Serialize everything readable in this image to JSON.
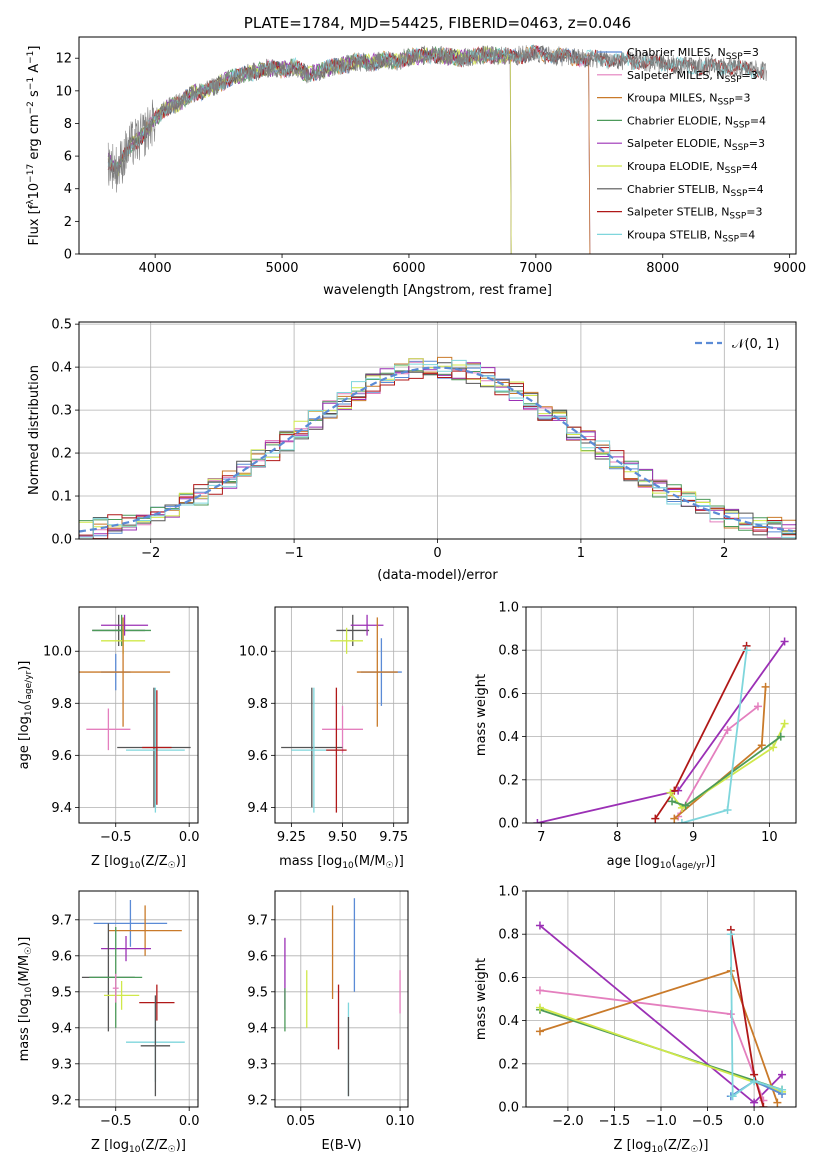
{
  "chart_data": [
    {
      "id": "spectrum",
      "type": "line",
      "title": "PLATE=1784, MJD=54425, FIBERID=0463, z=0.046",
      "xlabel": "wavelength [Angstrom, rest frame]",
      "ylabel": "Flux [f$_\\lambda$10$^{-17}$ erg cm$^{-2}$ s$^{-1}$ A$^{-1}$]",
      "ylabel_parts": [
        "Flux [f",
        "λ",
        "10",
        "−17",
        " erg cm",
        "−2",
        " s",
        "−1",
        " A",
        "−1",
        "]"
      ],
      "xlim": [
        3400,
        9050
      ],
      "ylim": [
        0,
        13.3
      ],
      "xticks": [
        4000,
        5000,
        6000,
        7000,
        8000,
        9000
      ],
      "yticks": [
        0,
        2,
        4,
        6,
        8,
        10,
        12
      ],
      "continuum": {
        "x": [
          3630,
          3700,
          3800,
          3900,
          4000,
          4100,
          4200,
          4300,
          4400,
          4500,
          4600,
          4700,
          4800,
          4900,
          5000,
          5100,
          5200,
          5300,
          5400,
          5500,
          5600,
          5700,
          5800,
          5900,
          6000,
          6200,
          6400,
          6600,
          6800,
          7000,
          7200,
          7400,
          7600,
          7800,
          8000,
          8200,
          8400,
          8600,
          8800
        ],
        "y": [
          5.7,
          5.2,
          6.6,
          7.2,
          8.3,
          9.0,
          9.3,
          9.9,
          10.0,
          10.4,
          10.8,
          11.0,
          11.2,
          11.4,
          11.3,
          11.5,
          11.0,
          11.2,
          11.5,
          11.6,
          11.8,
          11.7,
          11.9,
          11.8,
          12.1,
          12.2,
          12.0,
          12.2,
          12.1,
          12.3,
          12.1,
          12.0,
          11.9,
          11.8,
          11.7,
          11.5,
          11.5,
          11.4,
          11.2
        ]
      },
      "series": [
        {
          "name": "Chabrier MILES, N$_{SSP}$=3",
          "label": "Chabrier MILES, N",
          "sub": "SSP",
          "suffix": "=3",
          "color": "#5b8bd6",
          "xmax": 7420
        },
        {
          "name": "Salpeter MILES, N$_{SSP}$=3",
          "label": "Salpeter MILES, N",
          "sub": "SSP",
          "suffix": "=3",
          "color": "#e47fbe",
          "xmax": 7420
        },
        {
          "name": "Kroupa MILES, N$_{SSP}$=3",
          "label": "Kroupa MILES, N",
          "sub": "SSP",
          "suffix": "=3",
          "color": "#c97a2a",
          "xmax": 7420
        },
        {
          "name": "Chabrier ELODIE, N$_{SSP}$=4",
          "label": "Chabrier ELODIE, N",
          "sub": "SSP",
          "suffix": "=4",
          "color": "#4c9a5a",
          "xmax": 6800
        },
        {
          "name": "Salpeter ELODIE, N$_{SSP}$=3",
          "label": "Salpeter ELODIE, N",
          "sub": "SSP",
          "suffix": "=3",
          "color": "#9b30b5",
          "xmax": 6800
        },
        {
          "name": "Kroupa ELODIE, N$_{SSP}$=4",
          "label": "Kroupa ELODIE, N",
          "sub": "SSP",
          "suffix": "=4",
          "color": "#d0e84a",
          "xmax": 6800
        },
        {
          "name": "Chabrier STELIB, N$_{SSP}$=4",
          "label": "Chabrier STELIB, N",
          "sub": "SSP",
          "suffix": "=4",
          "color": "#555555",
          "xmax": 8800
        },
        {
          "name": "Salpeter STELIB, N$_{SSP}$=3",
          "label": "Salpeter STELIB, N",
          "sub": "SSP",
          "suffix": "=3",
          "color": "#b01818",
          "xmax": 8800
        },
        {
          "name": "Kroupa STELIB, N$_{SSP}$=4",
          "label": "Kroupa STELIB, N",
          "sub": "SSP",
          "suffix": "=4",
          "color": "#7fd6dc",
          "xmax": 8800
        }
      ],
      "data_color": "#808080",
      "legend": "right"
    },
    {
      "id": "residuals",
      "type": "histogram",
      "xlabel": "(data-model)/error",
      "ylabel": "Normed distribution",
      "xlim": [
        -2.5,
        2.5
      ],
      "ylim": [
        0,
        0.505
      ],
      "xticks": [
        -2,
        -1,
        0,
        1,
        2
      ],
      "yticks": [
        0.0,
        0.1,
        0.2,
        0.3,
        0.4,
        0.5
      ],
      "bin_width": 0.1,
      "reference": {
        "name": "N(0,1)",
        "label": "𝒩(0, 1)",
        "color": "#5b8bd6",
        "style": "dashed"
      },
      "grid": true,
      "legend": "top-right"
    },
    {
      "id": "age_vs_Z",
      "type": "errorbar",
      "xlabel": "Z [log10(Z/Z☉)]",
      "xlabel_parts": [
        "Z [log",
        "10",
        "(Z/Z",
        "☉",
        ")]"
      ],
      "ylabel": "age [log10(age/yr)]",
      "ylabel_parts": [
        "age  [log",
        "10",
        "(",
        "age/yr",
        ")]"
      ],
      "xlim": [
        -0.75,
        0.06
      ],
      "ylim": [
        9.34,
        10.17
      ],
      "xticks": [
        -0.5,
        0.0
      ],
      "xticklabels": [
        "−0.5",
        "0.0"
      ],
      "yticks": [
        9.4,
        9.6,
        9.8,
        10.0
      ],
      "yticklabels": [
        "9.4",
        "9.6",
        "9.8",
        "10.0"
      ],
      "points": [
        {
          "color": "#555555",
          "x": -0.48,
          "y": 10.08,
          "xerr": 0.18,
          "yerr": 0.06
        },
        {
          "color": "#4c9a5a",
          "x": -0.46,
          "y": 10.08,
          "xerr": 0.2,
          "yerr": 0.06
        },
        {
          "color": "#9b30b5",
          "x": -0.44,
          "y": 10.1,
          "xerr": 0.16,
          "yerr": 0.04
        },
        {
          "color": "#d0e84a",
          "x": -0.45,
          "y": 10.04,
          "xerr": 0.15,
          "yerr": 0.05
        },
        {
          "color": "#5b8bd6",
          "x": -0.5,
          "y": 9.92,
          "xerr": 0.1,
          "yerr": 0.07
        },
        {
          "color": "#c97a2a",
          "x": -0.45,
          "y": 9.92,
          "xerr": 0.32,
          "yerr": 0.21
        },
        {
          "color": "#e47fbe",
          "x": -0.55,
          "y": 9.7,
          "xerr": 0.15,
          "yerr": 0.08
        },
        {
          "color": "#555555",
          "x": -0.24,
          "y": 9.63,
          "xerr": 0.25,
          "yerr": 0.23
        },
        {
          "color": "#7fd6dc",
          "x": -0.23,
          "y": 9.62,
          "xerr": 0.2,
          "yerr": 0.24
        },
        {
          "color": "#b01818",
          "x": -0.22,
          "y": 9.63,
          "xerr": 0.1,
          "yerr": 0.22
        }
      ]
    },
    {
      "id": "age_vs_mass",
      "type": "errorbar",
      "xlabel": "mass [log10(M/M☉)]",
      "xlabel_parts": [
        "mass [log",
        "10",
        "(M/M",
        "☉",
        ")]"
      ],
      "xlim": [
        9.17,
        9.82
      ],
      "ylim": [
        9.34,
        10.17
      ],
      "xticks": [
        9.25,
        9.5,
        9.75
      ],
      "xticklabels": [
        "9.25",
        "9.50",
        "9.75"
      ],
      "yticks": [
        9.4,
        9.6,
        9.8,
        10.0
      ],
      "yticklabels": [
        "9.4",
        "9.6",
        "9.8",
        "10.0"
      ],
      "points": [
        {
          "color": "#555555",
          "x": 9.55,
          "y": 10.08,
          "xerr": 0.08,
          "yerr": 0.06
        },
        {
          "color": "#9b30b5",
          "x": 9.62,
          "y": 10.1,
          "xerr": 0.08,
          "yerr": 0.04
        },
        {
          "color": "#d0e84a",
          "x": 9.52,
          "y": 10.04,
          "xerr": 0.08,
          "yerr": 0.05
        },
        {
          "color": "#5b8bd6",
          "x": 9.69,
          "y": 9.92,
          "xerr": 0.1,
          "yerr": 0.13
        },
        {
          "color": "#c97a2a",
          "x": 9.67,
          "y": 9.92,
          "xerr": 0.1,
          "yerr": 0.21
        },
        {
          "color": "#e47fbe",
          "x": 9.5,
          "y": 9.7,
          "xerr": 0.1,
          "yerr": 0.09
        },
        {
          "color": "#555555",
          "x": 9.35,
          "y": 9.63,
          "xerr": 0.15,
          "yerr": 0.23
        },
        {
          "color": "#7fd6dc",
          "x": 9.36,
          "y": 9.62,
          "xerr": 0.11,
          "yerr": 0.24
        },
        {
          "color": "#b01818",
          "x": 9.47,
          "y": 9.62,
          "xerr": 0.05,
          "yerr": 0.24
        }
      ]
    },
    {
      "id": "weight_vs_age",
      "type": "line",
      "xlabel": "age [log10(age/yr)]",
      "xlabel_parts": [
        "age  [log",
        "10",
        "(",
        "age/yr",
        ")]"
      ],
      "ylabel": "mass weight",
      "xlim": [
        6.8,
        10.35
      ],
      "ylim": [
        0.0,
        1.0
      ],
      "xticks": [
        7,
        8,
        9,
        10
      ],
      "yticks": [
        0.0,
        0.2,
        0.4,
        0.6,
        0.8,
        1.0
      ],
      "grid": true,
      "series": [
        {
          "color": "#9b30b5",
          "x": [
            6.95,
            8.8,
            10.2
          ],
          "y": [
            0.0,
            0.15,
            0.84
          ]
        },
        {
          "color": "#b01818",
          "x": [
            8.5,
            8.75,
            9.7
          ],
          "y": [
            0.02,
            0.15,
            0.82
          ]
        },
        {
          "color": "#e47fbe",
          "x": [
            8.8,
            9.45,
            9.85
          ],
          "y": [
            0.03,
            0.43,
            0.54
          ]
        },
        {
          "color": "#c97a2a",
          "x": [
            8.75,
            9.9,
            9.95
          ],
          "y": [
            0.02,
            0.36,
            0.63
          ]
        },
        {
          "color": "#d0e84a",
          "x": [
            8.7,
            8.85,
            10.05,
            10.2
          ],
          "y": [
            0.14,
            0.07,
            0.35,
            0.46
          ]
        },
        {
          "color": "#4c9a5a",
          "x": [
            8.72,
            8.9,
            10.15
          ],
          "y": [
            0.1,
            0.08,
            0.4
          ]
        },
        {
          "color": "#7fd6dc",
          "x": [
            8.85,
            9.45,
            9.7
          ],
          "y": [
            0.0,
            0.06,
            0.8
          ]
        }
      ]
    },
    {
      "id": "mass_vs_Z",
      "type": "errorbar",
      "xlabel": "Z [log10(Z/Z☉)]",
      "xlabel_parts": [
        "Z [log",
        "10",
        "(Z/Z",
        "☉",
        ")]"
      ],
      "ylabel": "mass [log10(M/M☉)]",
      "ylabel_parts": [
        "mass [log",
        "10",
        "(M/M",
        "☉",
        ")]"
      ],
      "xlim": [
        -0.75,
        0.06
      ],
      "ylim": [
        9.18,
        9.78
      ],
      "xticks": [
        -0.5,
        0.0
      ],
      "xticklabels": [
        "−0.5",
        "0.0"
      ],
      "yticks": [
        9.2,
        9.3,
        9.4,
        9.5,
        9.6,
        9.7
      ],
      "yticklabels": [
        "9.2",
        "9.3",
        "9.4",
        "9.5",
        "9.6",
        "9.7"
      ],
      "points": [
        {
          "color": "#5b8bd6",
          "x": -0.4,
          "y": 9.69,
          "xerr": 0.25,
          "yerr": 0.065
        },
        {
          "color": "#c97a2a",
          "x": -0.3,
          "y": 9.67,
          "xerr": 0.25,
          "yerr": 0.07
        },
        {
          "color": "#9b30b5",
          "x": -0.43,
          "y": 9.62,
          "xerr": 0.17,
          "yerr": 0.035
        },
        {
          "color": "#555555",
          "x": -0.55,
          "y": 9.54,
          "xerr": 0.18,
          "yerr": 0.15
        },
        {
          "color": "#4c9a5a",
          "x": -0.5,
          "y": 9.54,
          "xerr": 0.18,
          "yerr": 0.14
        },
        {
          "color": "#d0e84a",
          "x": -0.46,
          "y": 9.49,
          "xerr": 0.12,
          "yerr": 0.04
        },
        {
          "color": "#e47fbe",
          "x": -0.5,
          "y": 9.51,
          "xerr": 0.02,
          "yerr": 0.04
        },
        {
          "color": "#b01818",
          "x": -0.22,
          "y": 9.47,
          "xerr": 0.12,
          "yerr": 0.05
        },
        {
          "color": "#7fd6dc",
          "x": -0.23,
          "y": 9.36,
          "xerr": 0.2,
          "yerr": 0.11
        },
        {
          "color": "#555555",
          "x": -0.23,
          "y": 9.35,
          "xerr": 0.1,
          "yerr": 0.14
        }
      ]
    },
    {
      "id": "mass_vs_ebv",
      "type": "errorbar",
      "xlabel": "E(B-V)",
      "xlim": [
        0.037,
        0.104
      ],
      "ylim": [
        9.18,
        9.78
      ],
      "xticks": [
        0.05,
        0.1
      ],
      "xticklabels": [
        "0.05",
        "0.10"
      ],
      "yticks": [
        9.2,
        9.3,
        9.4,
        9.5,
        9.6,
        9.7
      ],
      "yticklabels": [
        "9.2",
        "9.3",
        "9.4",
        "9.5",
        "9.6",
        "9.7"
      ],
      "points": [
        {
          "color": "#9b30b5",
          "x": 0.042,
          "y": 9.55,
          "xerr": 0,
          "yerr": 0.1
        },
        {
          "color": "#4c9a5a",
          "x": 0.042,
          "y": 9.45,
          "xerr": 0,
          "yerr": 0.06
        },
        {
          "color": "#d0e84a",
          "x": 0.053,
          "y": 9.48,
          "xerr": 0,
          "yerr": 0.08
        },
        {
          "color": "#c97a2a",
          "x": 0.066,
          "y": 9.61,
          "xerr": 0,
          "yerr": 0.13
        },
        {
          "color": "#b01818",
          "x": 0.069,
          "y": 9.43,
          "xerr": 0,
          "yerr": 0.09
        },
        {
          "color": "#5b8bd6",
          "x": 0.077,
          "y": 9.63,
          "xerr": 0,
          "yerr": 0.13
        },
        {
          "color": "#7fd6dc",
          "x": 0.074,
          "y": 9.34,
          "xerr": 0,
          "yerr": 0.13
        },
        {
          "color": "#555555",
          "x": 0.074,
          "y": 9.32,
          "xerr": 0,
          "yerr": 0.11
        },
        {
          "color": "#e47fbe",
          "x": 0.1,
          "y": 9.5,
          "xerr": 0,
          "yerr": 0.06
        }
      ]
    },
    {
      "id": "weight_vs_Z",
      "type": "line",
      "xlabel": "Z [log10(Z/Z☉)]",
      "xlabel_parts": [
        "Z [log",
        "10",
        "(Z/Z",
        "☉",
        ")]"
      ],
      "ylabel": "mass weight",
      "xlim": [
        -2.45,
        0.45
      ],
      "ylim": [
        0.0,
        1.0
      ],
      "xticks": [
        -2.0,
        -1.5,
        -1.0,
        -0.5,
        0.0
      ],
      "xticklabels": [
        "−2.0",
        "−1.5",
        "−1.0",
        "−0.5",
        "0.0"
      ],
      "yticks": [
        0.0,
        0.2,
        0.4,
        0.6,
        0.8,
        1.0
      ],
      "grid": true,
      "series": [
        {
          "color": "#9b30b5",
          "x": [
            -2.3,
            0.0,
            0.3
          ],
          "y": [
            0.84,
            0.02,
            0.15
          ]
        },
        {
          "color": "#e47fbe",
          "x": [
            -2.3,
            -0.25,
            0.1
          ],
          "y": [
            0.54,
            0.43,
            0.03
          ]
        },
        {
          "color": "#c97a2a",
          "x": [
            -2.3,
            -0.25,
            0.25
          ],
          "y": [
            0.35,
            0.63,
            0.02
          ]
        },
        {
          "color": "#4c9a5a",
          "x": [
            -2.3,
            0.3
          ],
          "y": [
            0.45,
            0.08
          ]
        },
        {
          "color": "#d0e84a",
          "x": [
            -2.3,
            0.3
          ],
          "y": [
            0.46,
            0.07
          ]
        },
        {
          "color": "#b01818",
          "x": [
            -0.25,
            0.0,
            0.1
          ],
          "y": [
            0.82,
            0.15,
            0.0
          ]
        },
        {
          "color": "#5b8bd6",
          "x": [
            -0.25,
            0.0,
            0.3
          ],
          "y": [
            0.05,
            0.12,
            0.06
          ]
        },
        {
          "color": "#7fd6dc",
          "x": [
            -0.25,
            -0.23,
            0.0,
            0.3
          ],
          "y": [
            0.8,
            0.05,
            0.12,
            0.08
          ]
        }
      ]
    }
  ]
}
